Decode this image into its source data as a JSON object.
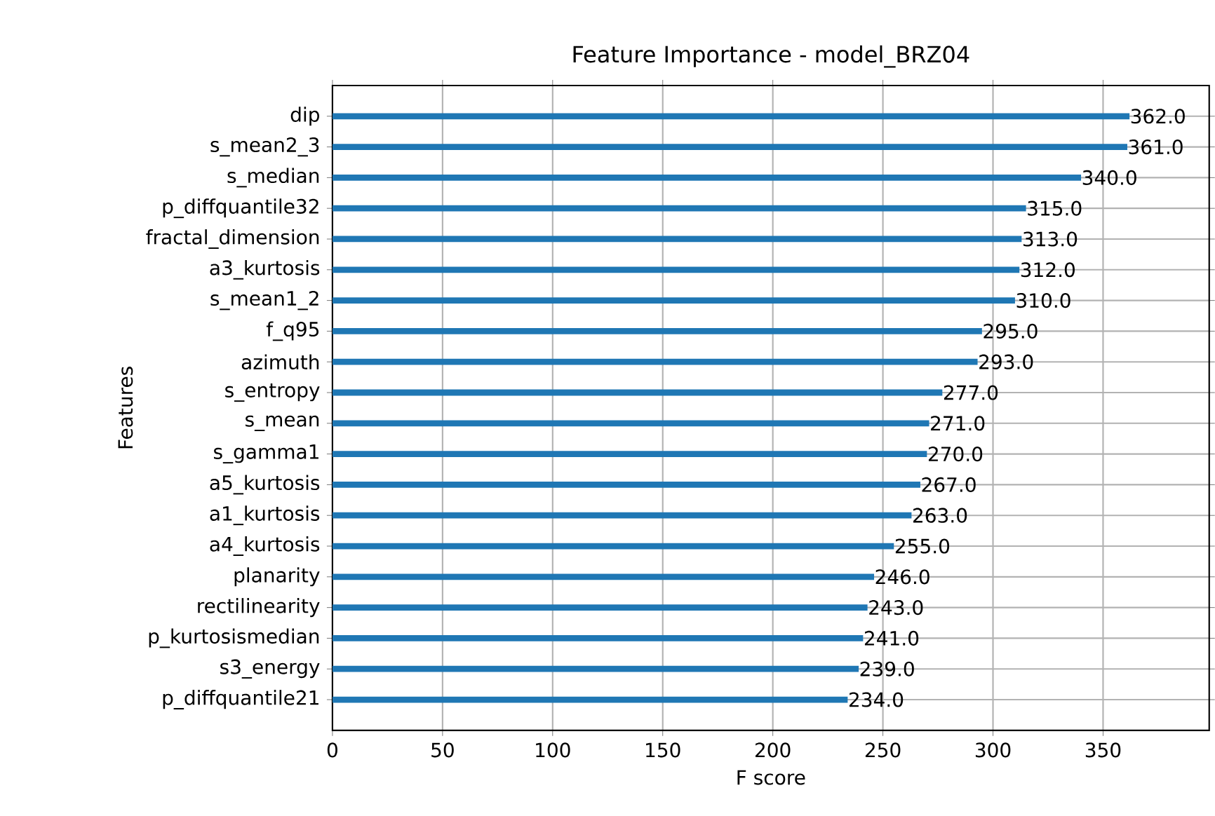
{
  "chart_data": {
    "type": "bar",
    "orientation": "horizontal",
    "title": "Feature Importance - model_BRZ04",
    "xlabel": "F score",
    "ylabel": "Features",
    "categories": [
      "dip",
      "s_mean2_3",
      "s_median",
      "p_diffquantile32",
      "fractal_dimension",
      "a3_kurtosis",
      "s_mean1_2",
      "f_q95",
      "azimuth",
      "s_entropy",
      "s_mean",
      "s_gamma1",
      "a5_kurtosis",
      "a1_kurtosis",
      "a4_kurtosis",
      "planarity",
      "rectilinearity",
      "p_kurtosismedian",
      "s3_energy",
      "p_diffquantile21"
    ],
    "values": [
      362,
      361,
      340,
      315,
      313,
      312,
      310,
      295,
      293,
      277,
      271,
      270,
      267,
      263,
      255,
      246,
      243,
      241,
      239,
      234
    ],
    "value_labels": [
      "362.0",
      "361.0",
      "340.0",
      "315.0",
      "313.0",
      "312.0",
      "310.0",
      "295.0",
      "293.0",
      "277.0",
      "271.0",
      "270.0",
      "267.0",
      "263.0",
      "255.0",
      "246.0",
      "243.0",
      "241.0",
      "239.0",
      "234.0"
    ],
    "color": "#1f77b4",
    "xlim": [
      0,
      398.2
    ],
    "xticks": [
      0,
      50,
      100,
      150,
      200,
      250,
      300,
      350
    ],
    "grid": true
  }
}
